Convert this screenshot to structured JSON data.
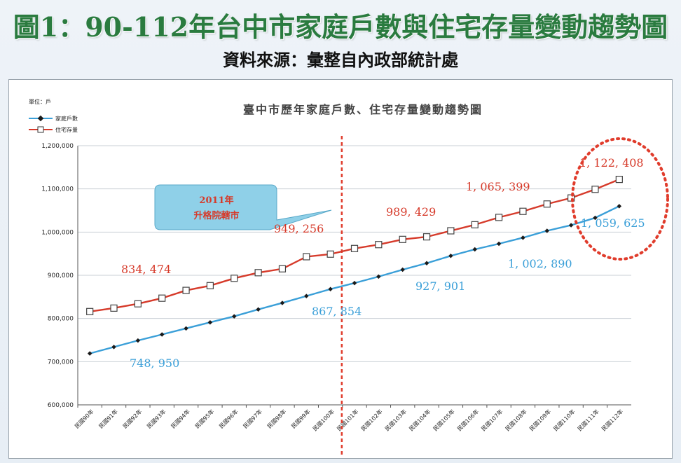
{
  "header": {
    "title": "圖1：90-112年台中市家庭戶數與住宅存量變動趨勢圖",
    "source": "資料來源：彙整自內政部統計處"
  },
  "chart_data": {
    "type": "line",
    "title": "臺中市歷年家庭戶數、住宅存量變動趨勢圖",
    "unit_label": "單位：戶",
    "categories": [
      "民國90年",
      "民國91年",
      "民國92年",
      "民國93年",
      "民國94年",
      "民國95年",
      "民國96年",
      "民國97年",
      "民國98年",
      "民國99年",
      "民國100年",
      "民國101年",
      "民國102年",
      "民國103年",
      "民國104年",
      "民國105年",
      "民國106年",
      "民國107年",
      "民國108年",
      "民國109年",
      "民國110年",
      "民國111年",
      "民國112年"
    ],
    "ylim": [
      600000,
      1200000
    ],
    "yticks": [
      "600,000",
      "700,000",
      "800,000",
      "900,000",
      "1,000,000",
      "1,100,000",
      "1,200,000"
    ],
    "legend_position": "top-left",
    "series": [
      {
        "name": "家庭戶數",
        "color": "#3a9fd8",
        "marker": "diamond",
        "values": [
          719000,
          734000,
          749000,
          763000,
          777000,
          791000,
          805000,
          821000,
          836000,
          852000,
          868000,
          882000,
          897000,
          913000,
          928000,
          945000,
          960000,
          973000,
          987000,
          1003000,
          1016000,
          1033000,
          1060000
        ]
      },
      {
        "name": "住宅存量",
        "color": "#d63a2a",
        "marker": "square",
        "values": [
          816000,
          824000,
          834000,
          847000,
          865000,
          876000,
          893000,
          906000,
          915000,
          943000,
          949000,
          962000,
          971000,
          983000,
          989000,
          1003000,
          1017000,
          1034000,
          1048000,
          1065000,
          1079000,
          1099000,
          1122000
        ]
      }
    ],
    "annotations": {
      "red": [
        {
          "text": "834, 474"
        },
        {
          "text": "949, 256"
        },
        {
          "text": "989, 429"
        },
        {
          "text": "1, 065, 399"
        },
        {
          "text": "1, 122, 408"
        }
      ],
      "blue": [
        {
          "text": "748, 950"
        },
        {
          "text": "867, 854"
        },
        {
          "text": "927, 901"
        },
        {
          "text": "1, 002, 890"
        },
        {
          "text": "1, 059, 625"
        }
      ],
      "callout_line1": "2011年",
      "callout_line2": "升格院轄市",
      "divider_category": "民國100年"
    }
  }
}
